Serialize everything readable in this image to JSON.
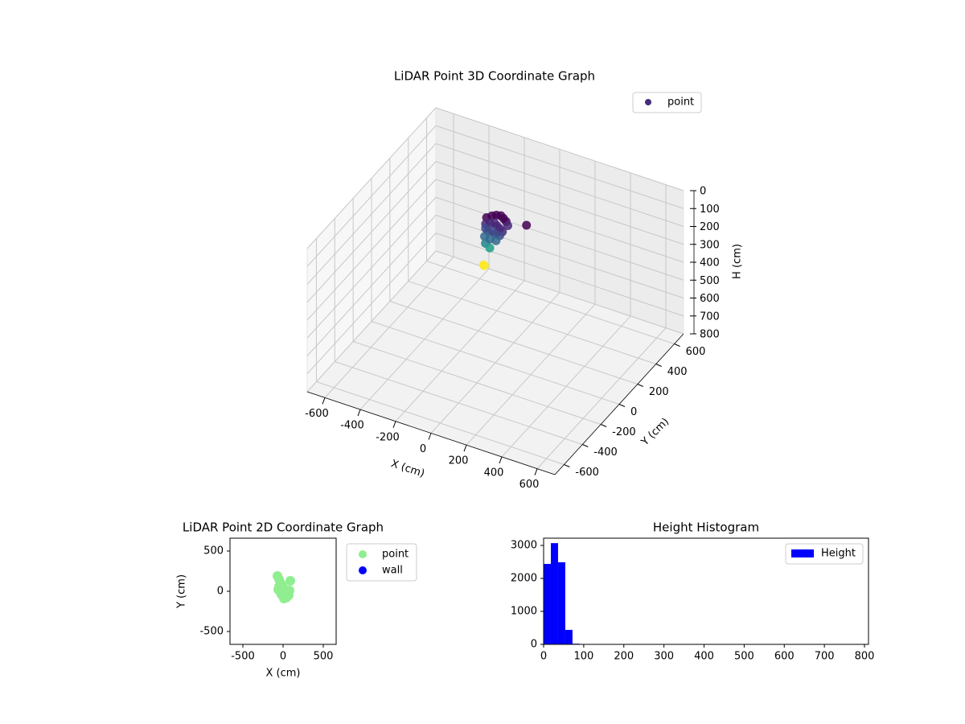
{
  "chart_data": [
    {
      "type": "scatter3d",
      "title": "LiDAR Point 3D Coordinate Graph",
      "xlabel": "X (cm)",
      "ylabel": "Y (cm)",
      "zlabel": "H (cm)",
      "xlim": [
        -700,
        700
      ],
      "ylim": [
        -700,
        700
      ],
      "zlim": [
        0,
        800
      ],
      "z_inverted": true,
      "xticks": [
        -600,
        -400,
        -200,
        0,
        200,
        400,
        600
      ],
      "yticks": [
        -600,
        -400,
        -200,
        0,
        200,
        400,
        600
      ],
      "zticks": [
        0,
        100,
        200,
        300,
        400,
        500,
        600,
        700,
        800
      ],
      "grid": true,
      "legend": "upper right",
      "series": [
        {
          "name": "point",
          "color": "#472d7b",
          "colormap": "viridis",
          "x": [
            -60,
            -40,
            -20,
            0,
            20,
            40,
            60,
            -50,
            -30,
            -10,
            10,
            30,
            50,
            -40,
            -20,
            0,
            20,
            40,
            -30,
            0,
            30,
            150,
            -20,
            10,
            0,
            -10
          ],
          "y": [
            20,
            40,
            50,
            60,
            50,
            40,
            20,
            -10,
            0,
            10,
            0,
            -10,
            -20,
            -30,
            -40,
            -30,
            -40,
            -30,
            -60,
            -60,
            -50,
            50,
            -70,
            -80,
            -120,
            -110
          ],
          "z": [
            20,
            15,
            10,
            12,
            15,
            20,
            25,
            35,
            30,
            28,
            32,
            35,
            40,
            45,
            50,
            48,
            52,
            60,
            70,
            75,
            80,
            10,
            100,
            110,
            190,
            195
          ]
        }
      ]
    },
    {
      "type": "scatter",
      "title": "LiDAR Point 2D Coordinate Graph",
      "xlabel": "X (cm)",
      "ylabel": "Y (cm)",
      "xlim": [
        -660,
        660
      ],
      "ylim": [
        -660,
        660
      ],
      "xticks": [
        -500,
        0,
        500
      ],
      "yticks": [
        -500,
        0,
        500
      ],
      "legend": "outside right",
      "series": [
        {
          "name": "point",
          "color": "#90ee90",
          "x": [
            -70,
            -50,
            90,
            -30,
            -50,
            0,
            20,
            -40,
            60,
            80,
            0,
            30,
            10,
            40,
            -20,
            50,
            -60,
            70,
            30,
            -10
          ],
          "y": [
            190,
            150,
            130,
            100,
            60,
            50,
            20,
            0,
            -10,
            10,
            -30,
            -60,
            -90,
            -80,
            -40,
            -30,
            20,
            -50,
            10,
            70
          ]
        },
        {
          "name": "wall",
          "color": "#0000ff",
          "x": [],
          "y": []
        }
      ]
    },
    {
      "type": "histogram",
      "title": "Height Histogram",
      "xlim": [
        0,
        810
      ],
      "ylim": [
        0,
        3220
      ],
      "xticks": [
        0,
        100,
        200,
        300,
        400,
        500,
        600,
        700,
        800
      ],
      "yticks": [
        0,
        1000,
        2000,
        3000
      ],
      "legend": "upper right",
      "bins": [
        0,
        18,
        36,
        54,
        72,
        90,
        108,
        126,
        144,
        162,
        180,
        198,
        216,
        234,
        252,
        270,
        288,
        306,
        324,
        342,
        360,
        378,
        396,
        414,
        432,
        450,
        468,
        486,
        504,
        522,
        540,
        558,
        576,
        594,
        612,
        630,
        648,
        666,
        684,
        702,
        720,
        738,
        756,
        774,
        792,
        810
      ],
      "series": [
        {
          "name": "Height",
          "color": "#0000ff",
          "values": [
            2440,
            3070,
            2490,
            440,
            20,
            6,
            2,
            1,
            0,
            0,
            0,
            0,
            0,
            0,
            0,
            0,
            0,
            0,
            0,
            0,
            0,
            0,
            0,
            0,
            0,
            0,
            0,
            0,
            0,
            0,
            0,
            0,
            0,
            0,
            0,
            0,
            0,
            0,
            0,
            0,
            0,
            0,
            0,
            0,
            1
          ]
        }
      ]
    }
  ]
}
